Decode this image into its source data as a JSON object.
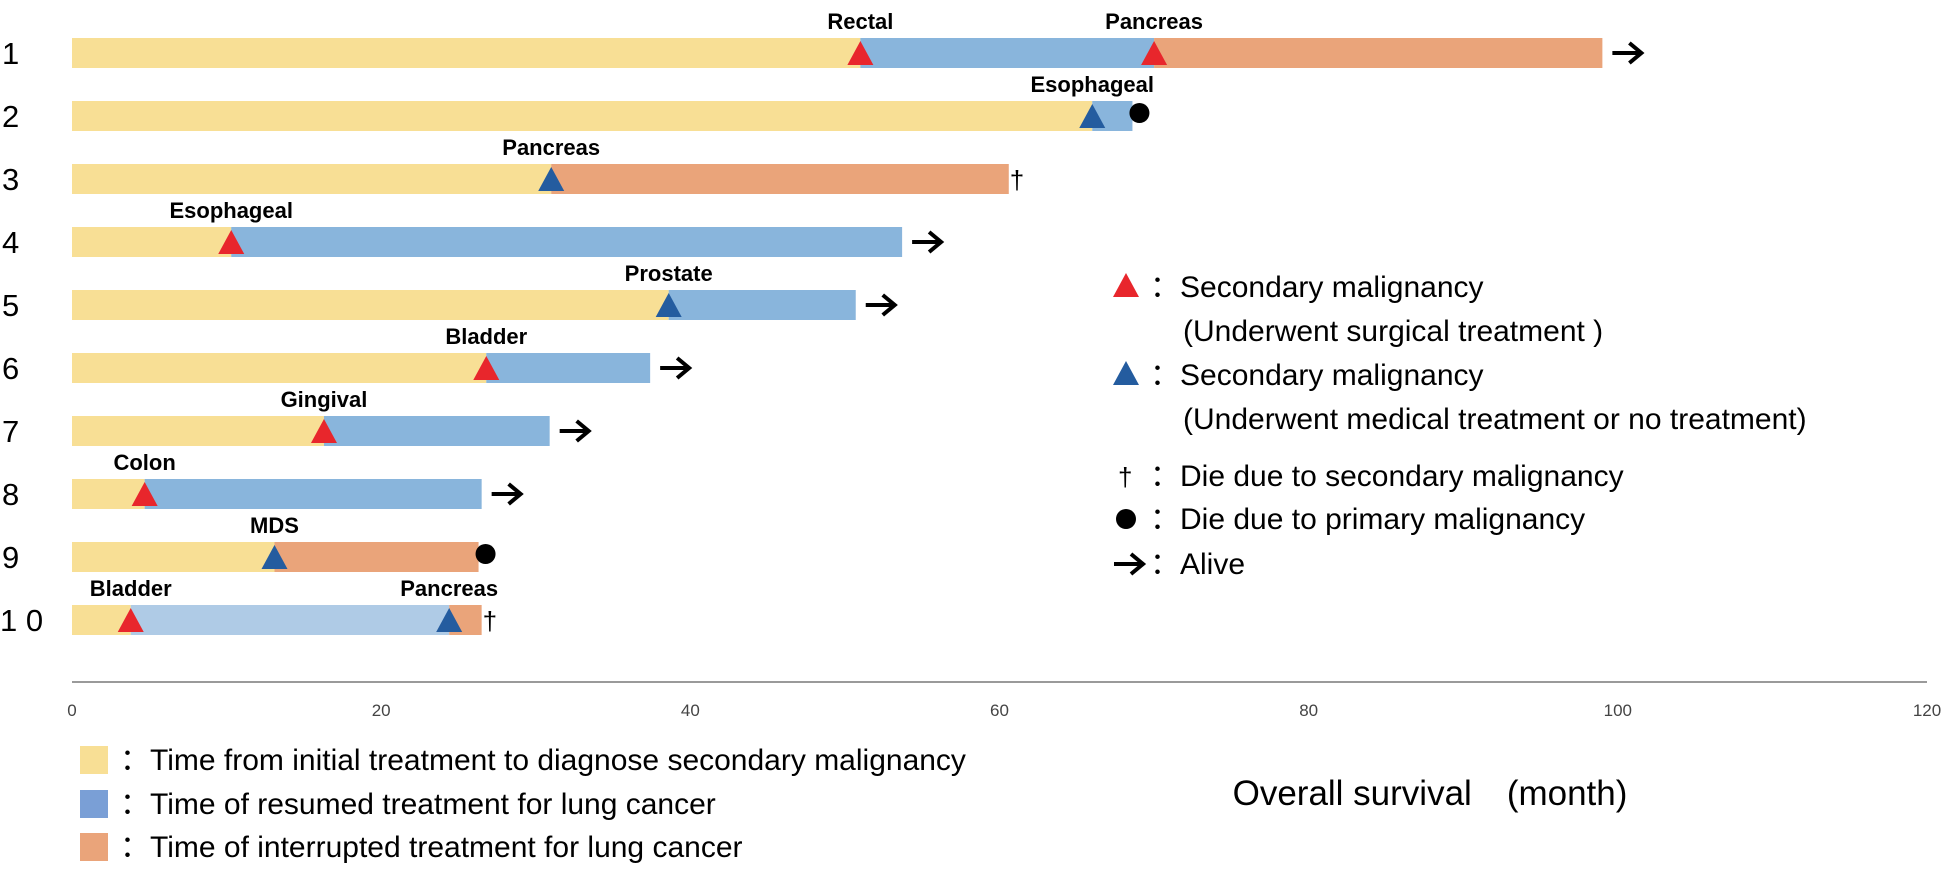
{
  "chart_data": {
    "type": "bar",
    "orientation": "horizontal",
    "stacked": true,
    "xlabel": "Overall survival　(month)",
    "xlim": [
      0,
      120
    ],
    "xticks": [
      0,
      20,
      40,
      60,
      80,
      100,
      120
    ],
    "grid": false,
    "colors": {
      "initial": "#F8DF95",
      "resumed": "#89B5DC",
      "resumed_light": "#AFCBE6",
      "interrupted": "#EAA47A",
      "marker_surgical": "#E8262C",
      "marker_medical": "#245C9F"
    },
    "patients": [
      {
        "label": "1",
        "segments": [
          {
            "phase": "initial",
            "start": 0,
            "end": 51
          },
          {
            "phase": "resumed",
            "start": 51,
            "end": 70
          },
          {
            "phase": "interrupted",
            "start": 70,
            "end": 99
          }
        ],
        "events": [
          {
            "x": 51,
            "label": "Rectal",
            "marker": "surgical"
          },
          {
            "x": 70,
            "label": "Pancreas",
            "marker": "surgical"
          }
        ],
        "outcome": "alive"
      },
      {
        "label": "2",
        "segments": [
          {
            "phase": "initial",
            "start": 0,
            "end": 66
          },
          {
            "phase": "resumed",
            "start": 66,
            "end": 68.6
          }
        ],
        "events": [
          {
            "x": 66,
            "label": "Esophageal",
            "marker": "medical"
          }
        ],
        "outcome": "death_primary"
      },
      {
        "label": "3",
        "segments": [
          {
            "phase": "initial",
            "start": 0,
            "end": 31
          },
          {
            "phase": "interrupted",
            "start": 31,
            "end": 60.6
          }
        ],
        "events": [
          {
            "x": 31,
            "label": "Pancreas",
            "marker": "medical"
          }
        ],
        "outcome": "death_secondary"
      },
      {
        "label": "4",
        "segments": [
          {
            "phase": "initial",
            "start": 0,
            "end": 10.3
          },
          {
            "phase": "resumed",
            "start": 10.3,
            "end": 53.7
          }
        ],
        "events": [
          {
            "x": 10.3,
            "label": "Esophageal",
            "marker": "surgical"
          }
        ],
        "outcome": "alive"
      },
      {
        "label": "5",
        "segments": [
          {
            "phase": "initial",
            "start": 0,
            "end": 38.6
          },
          {
            "phase": "resumed",
            "start": 38.6,
            "end": 50.7
          }
        ],
        "events": [
          {
            "x": 38.6,
            "label": "Prostate",
            "marker": "medical"
          }
        ],
        "outcome": "alive"
      },
      {
        "label": "6",
        "segments": [
          {
            "phase": "initial",
            "start": 0,
            "end": 26.8
          },
          {
            "phase": "resumed",
            "start": 26.8,
            "end": 37.4
          }
        ],
        "events": [
          {
            "x": 26.8,
            "label": "Bladder",
            "marker": "surgical"
          }
        ],
        "outcome": "alive"
      },
      {
        "label": "7",
        "segments": [
          {
            "phase": "initial",
            "start": 0,
            "end": 16.3
          },
          {
            "phase": "resumed",
            "start": 16.3,
            "end": 30.9
          }
        ],
        "events": [
          {
            "x": 16.3,
            "label": "Gingival",
            "marker": "surgical"
          }
        ],
        "outcome": "alive"
      },
      {
        "label": "8",
        "segments": [
          {
            "phase": "initial",
            "start": 0,
            "end": 4.7
          },
          {
            "phase": "resumed",
            "start": 4.7,
            "end": 26.5
          }
        ],
        "events": [
          {
            "x": 4.7,
            "label": "Colon",
            "marker": "surgical"
          }
        ],
        "outcome": "alive"
      },
      {
        "label": "9",
        "segments": [
          {
            "phase": "initial",
            "start": 0,
            "end": 13.1
          },
          {
            "phase": "interrupted",
            "start": 13.1,
            "end": 26.3
          }
        ],
        "events": [
          {
            "x": 13.1,
            "label": "MDS",
            "marker": "medical"
          }
        ],
        "outcome": "death_primary"
      },
      {
        "label": "1 0",
        "segments": [
          {
            "phase": "initial",
            "start": 0,
            "end": 3.8
          },
          {
            "phase": "resumed_light",
            "start": 3.8,
            "end": 24.4
          },
          {
            "phase": "interrupted",
            "start": 24.4,
            "end": 26.5
          }
        ],
        "events": [
          {
            "x": 3.8,
            "label": "Bladder",
            "marker": "surgical"
          },
          {
            "x": 24.4,
            "label": "Pancreas",
            "marker": "medical"
          }
        ],
        "outcome": "death_secondary"
      }
    ],
    "legend_markers": [
      {
        "symbol": "surgical",
        "lines": [
          "：Secondary malignancy",
          "(Underwent surgical treatment )"
        ]
      },
      {
        "symbol": "medical",
        "lines": [
          "：Secondary malignancy",
          "(Underwent medical treatment or no treatment)"
        ]
      },
      {
        "symbol": "dagger",
        "lines": [
          "：Die due to secondary malignancy"
        ]
      },
      {
        "symbol": "dot",
        "lines": [
          "：Die due to primary malignancy"
        ]
      },
      {
        "symbol": "arrow",
        "lines": [
          "：Alive"
        ]
      }
    ],
    "legend_phases": [
      {
        "phase": "initial",
        "swatch": "#F8DF95",
        "text": "：Time from initial treatment to diagnose secondary malignancy"
      },
      {
        "phase": "resumed",
        "swatch": "#7A9FD6",
        "text": "：Time of resumed treatment for lung cancer"
      },
      {
        "phase": "interrupted",
        "swatch": "#EAA47A",
        "text": "：Time of interrupted treatment for lung cancer"
      }
    ]
  }
}
